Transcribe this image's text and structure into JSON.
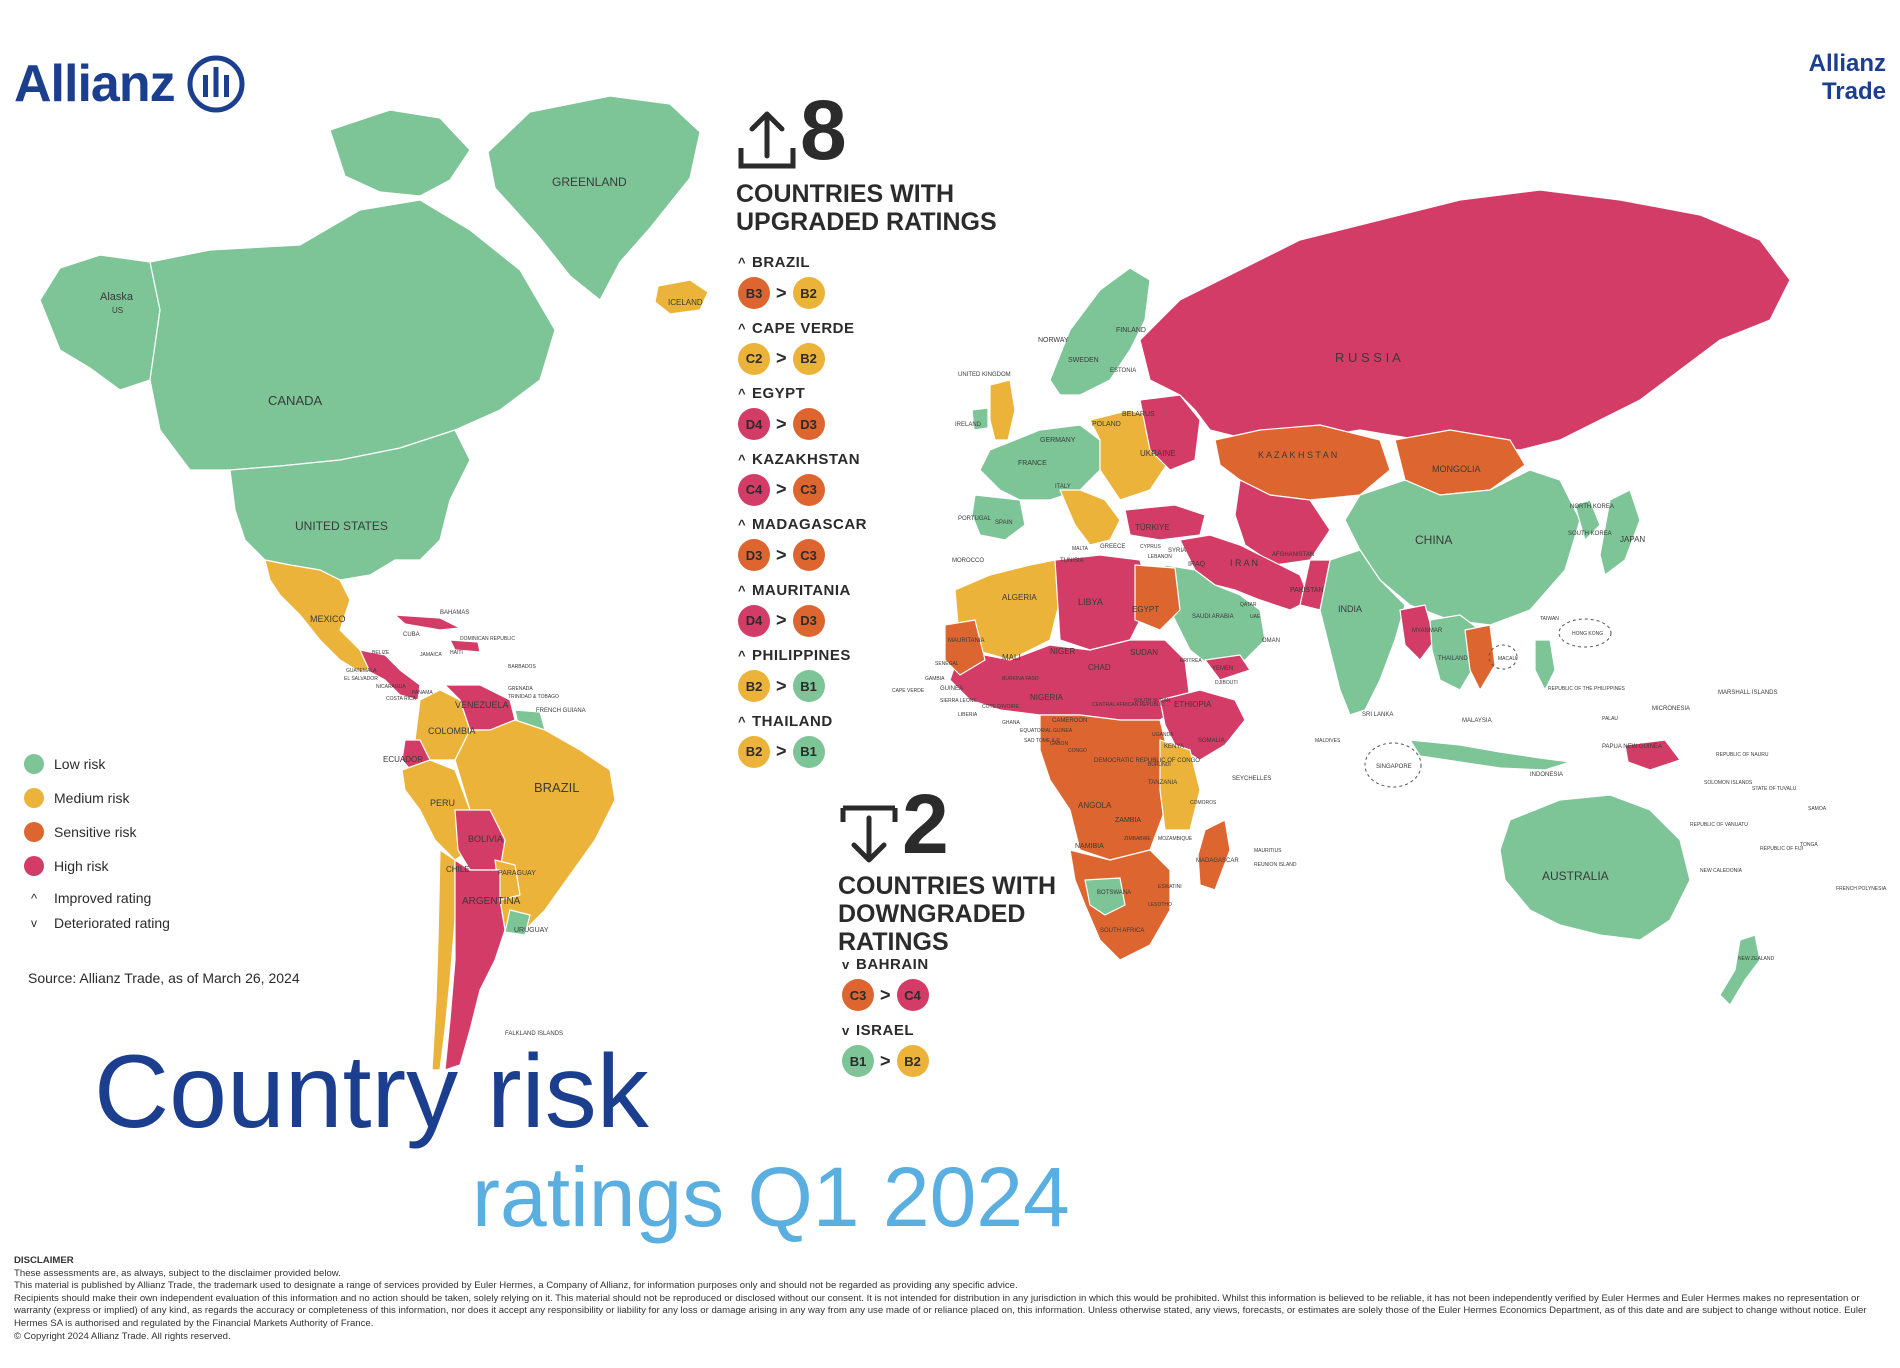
{
  "brand": {
    "logo_text": "Allianz",
    "trade_line1": "Allianz",
    "trade_line2": "Trade"
  },
  "colors": {
    "low": "#7dc497",
    "medium": "#ebb33a",
    "sensitive": "#dd6630",
    "high": "#d23c66",
    "title_dark": "#1b3e8f",
    "title_light": "#5aaee0"
  },
  "upgraded": {
    "count": "8",
    "label": "COUNTRIES WITH UPGRADED RATINGS",
    "items": [
      {
        "name": "BRAZIL",
        "from": "B3",
        "from_color": "#dd6630",
        "to": "B2",
        "to_color": "#ebb33a"
      },
      {
        "name": "CAPE VERDE",
        "from": "C2",
        "from_color": "#ebb33a",
        "to": "B2",
        "to_color": "#ebb33a"
      },
      {
        "name": "EGYPT",
        "from": "D4",
        "from_color": "#d23c66",
        "to": "D3",
        "to_color": "#dd6630"
      },
      {
        "name": "KAZAKHSTAN",
        "from": "C4",
        "from_color": "#d23c66",
        "to": "C3",
        "to_color": "#dd6630"
      },
      {
        "name": "MADAGASCAR",
        "from": "D3",
        "from_color": "#dd6630",
        "to": "C3",
        "to_color": "#dd6630"
      },
      {
        "name": "MAURITANIA",
        "from": "D4",
        "from_color": "#d23c66",
        "to": "D3",
        "to_color": "#dd6630"
      },
      {
        "name": "PHILIPPINES",
        "from": "B2",
        "from_color": "#ebb33a",
        "to": "B1",
        "to_color": "#7dc497"
      },
      {
        "name": "THAILAND",
        "from": "B2",
        "from_color": "#ebb33a",
        "to": "B1",
        "to_color": "#7dc497"
      }
    ]
  },
  "downgraded": {
    "count": "2",
    "label": "COUNTRIES WITH DOWNGRADED RATINGS",
    "items": [
      {
        "name": "BAHRAIN",
        "from": "C3",
        "from_color": "#dd6630",
        "to": "C4",
        "to_color": "#d23c66"
      },
      {
        "name": "ISRAEL",
        "from": "B1",
        "from_color": "#7dc497",
        "to": "B2",
        "to_color": "#ebb33a"
      }
    ]
  },
  "legend": {
    "low": "Low risk",
    "medium": "Medium risk",
    "sensitive": "Sensitive risk",
    "high": "High risk",
    "improved": "Improved rating",
    "deteriorated": "Deteriorated rating"
  },
  "source": "Source: Allianz Trade, as of March 26, 2024",
  "title": {
    "line1": "Country risk",
    "line2": "ratings Q1 2024"
  },
  "map_labels": {
    "greenland": "GREENLAND",
    "alaska": "Alaska",
    "us_small": "US",
    "canada": "CANADA",
    "united_states": "UNITED STATES",
    "mexico": "MEXICO",
    "iceland": "ICELAND",
    "russia": "R U S S I A",
    "kazakhstan": "K A Z A K H S T A N",
    "mongolia": "MONGOLIA",
    "china": "CHINA",
    "japan": "JAPAN",
    "india": "INDIA",
    "iran": "I R A N",
    "brazil": "BRAZIL",
    "argentina": "ARGENTINA",
    "peru": "PERU",
    "bolivia": "BOLIVIA",
    "colombia": "COLOMBIA",
    "venezuela": "VENEZUELA",
    "australia": "AUSTRALIA",
    "algeria": "ALGERIA",
    "libya": "LIBYA",
    "egypt": "EGYPT",
    "sudan": "SUDAN",
    "ethiopia": "ETHIOPIA",
    "drc": "DEMOCRATIC REPUBLIC OF CONGO",
    "angola": "ANGOLA",
    "south_africa": "SOUTH AFRICA",
    "saudi_arabia": "SAUDI ARABIA",
    "turkiye": "TÜRKIYE",
    "ukraine": "UKRAINE",
    "finland": "FINLAND",
    "sweden": "SWEDEN",
    "norway": "NORWAY",
    "france": "FRANCE",
    "spain": "SPAIN",
    "madagascar": "MADAGASCAR",
    "indonesia": "INDONESIA",
    "papua": "PAPUA NEW GUINEA",
    "new_zealand": "NEW ZEALAND",
    "chile": "CHILE",
    "ecuador": "ECUADOR",
    "uruguay": "URUGUAY",
    "paraguay": "PARAGUAY",
    "nigeria": "NIGERIA",
    "niger": "NIGER",
    "chad": "CHAD",
    "mali": "MALI",
    "mauritania": "MAURITANIA",
    "morocco": "MOROCCO",
    "kenya": "KENYA",
    "tanzania": "TANZANIA",
    "zambia": "ZAMBIA",
    "namibia": "NAMIBIA",
    "botswana": "BOTSWANA",
    "somalia": "SOMALIA",
    "pakistan": "PAKISTAN",
    "afghanistan": "AFGHANISTAN",
    "iraq": "IRAQ",
    "yemen": "YEMEN",
    "oman": "OMAN",
    "myanmar": "MYANMAR",
    "thailand": "THAILAND",
    "philippines": "REPUBLIC OF THE PHILIPPINES",
    "micronesia": "MICRONESIA",
    "marshall": "MARSHALL ISLANDS",
    "seychelles": "SEYCHELLES",
    "falkland": "FALKLAND ISLANDS",
    "singapore": "SINGAPORE",
    "hong_kong": "HONG KONG",
    "taiwan": "TAIWAN",
    "sri_lanka": "SRI LANKA",
    "maldives": "MALDIVES",
    "cuba": "CUBA",
    "bahamas": "BAHAMAS",
    "uk": "UNITED KINGDOM",
    "ireland": "IRELAND",
    "germany": "GERMANY",
    "poland": "POLAND",
    "belarus": "BELARUS",
    "estonia": "ESTONIA",
    "italy": "ITALY",
    "greece": "GREECE",
    "tunisia": "TUNISIA",
    "portugal": "PORTUGAL",
    "south_korea": "SOUTH KOREA",
    "north_korea": "NORTH KOREA",
    "samoa": "SAMOA",
    "tonga": "TONGA",
    "fiji": "REPUBLIC OF FIJI",
    "vanuatu": "REPUBLIC OF VANUATU",
    "solomon": "SOLOMON ISLANDS",
    "new_caledonia": "NEW CALEDONIA",
    "french_polynesia": "FRENCH POLYNESIA",
    "palau": "PALAU",
    "mauritius": "MAURITIUS",
    "reunion": "REUNION ISLAND",
    "comoros": "COMOROS",
    "cape_verde": "CAPE VERDE",
    "djibouti": "DJIBOUTI",
    "eswatini": "ESWATINI",
    "lesotho": "LESOTHO",
    "guyana": "FRENCH GUIANA",
    "macau": "MACAU",
    "malaysia": "MALAYSIA",
    "cameroon": "CAMEROON",
    "ghana": "GHANA",
    "liberia": "LIBERIA",
    "senegal": "SENEGAL",
    "guinea": "GUINEA",
    "gambia": "GAMBIA",
    "sierra_leone": "SIERRA LEONE",
    "cote_divoire": "COTE D'IVOIRE",
    "burkina": "BURKINA FASO",
    "car": "CENTRAL AFRICAN REPUBLIC",
    "south_sudan": "SOUTH SUDAN",
    "burundi": "BURUNDI",
    "zimbabwe": "ZIMBABWE",
    "mozambique": "MOZAMBIQUE",
    "sao_tome": "SAO TOME & P.",
    "equatorial_guinea": "EQUATORIAL GUINEA",
    "gabon": "GABON",
    "congo": "CONGO",
    "uganda": "UGANDA",
    "eritrea": "ERITREA",
    "cyprus": "CYPRUS",
    "lebanon": "LEBANON",
    "syria": "SYRIA",
    "uae": "UAE",
    "qatar": "QATAR",
    "malta": "MALTA",
    "tuvalu": "STATE OF TUVALU",
    "nauru": "REPUBLIC OF NAURU",
    "panama": "PANAMA",
    "costa_rica": "COSTA RICA",
    "guatemala": "GUATEMALA",
    "el_salvador": "EL SALVADOR",
    "belize": "BELIZE",
    "nicaragua": "NICARAGUA",
    "jamaica": "JAMAICA",
    "haiti": "HAITI",
    "dominican": "DOMINICAN REPUBLIC",
    "trinidad": "TRINIDAD & TOBAGO",
    "barbados": "BARBADOS",
    "grenada": "GRENADA"
  },
  "disclaimer": {
    "heading": "DISCLAIMER",
    "line1": "These assessments are, as always, subject to the disclaimer provided below.",
    "line2": "This material is published by Allianz Trade, the trademark used to designate a range of services provided by Euler Hermes, a Company of Allianz, for information purposes only and should not be regarded as providing any specific advice.",
    "line3": "Recipients should make their own independent evaluation of this information and no action should be taken, solely relying on it. This material should not be reproduced or disclosed without our consent. It is not intended for distribution in any jurisdiction in which this would be prohibited. Whilst this information is believed to be reliable, it has not been independently verified by Euler Hermes and Euler Hermes makes no representation or warranty (express or implied) of any kind, as regards the accuracy or completeness of this information, nor does it accept any responsibility or liability for any loss or damage arising in any way from any use made of or reliance placed on, this information. Unless otherwise stated, any views, forecasts, or estimates are solely those of the Euler Hermes Economics Department, as of this date and are subject to change without notice. Euler Hermes SA is authorised and regulated by the Financial Markets Authority of France.",
    "line4": "© Copyright 2024 Allianz Trade. All rights reserved."
  }
}
